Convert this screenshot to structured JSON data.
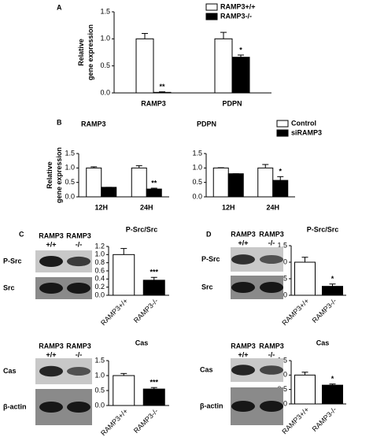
{
  "panel_labels": [
    "A",
    "B",
    "C",
    "D"
  ],
  "chart_data": [
    {
      "type": "bar",
      "ylabel": [
        "Relative",
        "gene expression"
      ],
      "categories": [
        "RAMP3",
        "PDPN"
      ],
      "series": [
        {
          "name": "RAMP3+/+",
          "color": "#ffffff",
          "values": [
            1.0,
            1.0
          ],
          "errors": [
            0.1,
            0.12
          ],
          "significance": [
            null,
            null
          ]
        },
        {
          "name": "RAMP3-/-",
          "color": "#000000",
          "values": [
            0.01,
            0.66
          ],
          "errors": [
            0.01,
            0.04
          ],
          "significance": [
            "**",
            "*"
          ]
        }
      ],
      "ylim": [
        0,
        1.5
      ],
      "yticks": [
        {
          "value": 0,
          "label": "0.0"
        },
        0.5,
        {
          "value": 1,
          "label": "1.0"
        },
        1.5
      ],
      "legend": "upper right"
    },
    {
      "type": "bar",
      "title": "RAMP3",
      "ylabel": [
        "Relative",
        "gene expression"
      ],
      "categories": [
        "12H",
        "24H"
      ],
      "series": [
        {
          "name": "Control",
          "color": "#ffffff",
          "values": [
            1.0,
            1.0
          ],
          "errors": [
            0.04,
            0.08
          ],
          "significance": [
            null,
            null
          ]
        },
        {
          "name": "siRAMP3",
          "color": "#000000",
          "values": [
            0.33,
            0.27
          ],
          "errors": [
            0.0,
            0.03
          ],
          "significance": [
            null,
            "**"
          ]
        }
      ],
      "ylim": [
        0,
        1.5
      ],
      "yticks": [
        {
          "value": 0,
          "label": "0.0"
        },
        0.5,
        {
          "value": 1,
          "label": "1.0"
        },
        1.5
      ]
    },
    {
      "type": "bar",
      "title": "PDPN",
      "categories": [
        "12H",
        "24H"
      ],
      "series": [
        {
          "name": "Control",
          "color": "#ffffff",
          "values": [
            1.0,
            1.0
          ],
          "errors": [
            0.01,
            0.12
          ],
          "significance": [
            null,
            null
          ]
        },
        {
          "name": "siRAMP3",
          "color": "#000000",
          "values": [
            0.8,
            0.57
          ],
          "errors": [
            0.0,
            0.13
          ],
          "significance": [
            null,
            "*"
          ]
        }
      ],
      "ylim": [
        0,
        1.5
      ],
      "yticks": [
        {
          "value": 0,
          "label": "0.0"
        },
        0.5,
        {
          "value": 1,
          "label": "1.0"
        },
        1.5
      ],
      "legend": "upper right"
    },
    {
      "type": "bar",
      "title": "P-Src/Src",
      "categories": [
        "RAMP3+/+",
        "RAMP3-/-"
      ],
      "series": [
        {
          "colors": [
            "#ffffff",
            "#000000"
          ],
          "values": [
            1.0,
            0.37
          ],
          "errors": [
            0.15,
            0.07
          ],
          "significance": [
            null,
            "***"
          ]
        }
      ],
      "ylim": [
        0,
        1.2
      ],
      "yticks": [
        {
          "value": 0,
          "label": "0.0"
        },
        0.2,
        0.4,
        0.6,
        0.8,
        {
          "value": 1,
          "label": "1.0"
        },
        1.2
      ]
    },
    {
      "type": "bar",
      "title": "Cas",
      "categories": [
        "RAMP3+/+",
        "RAMP3-/-"
      ],
      "series": [
        {
          "colors": [
            "#ffffff",
            "#000000"
          ],
          "values": [
            1.0,
            0.55
          ],
          "errors": [
            0.07,
            0.05
          ],
          "significance": [
            null,
            "***"
          ]
        }
      ],
      "ylim": [
        0,
        1.5
      ],
      "yticks": [
        {
          "value": 0,
          "label": "0.0"
        },
        0.5,
        {
          "value": 1,
          "label": "1.0"
        },
        1.5
      ]
    },
    {
      "type": "bar",
      "title": "P-Src/Src",
      "categories": [
        "RAMP3+/+",
        "RAMP3-/-"
      ],
      "series": [
        {
          "colors": [
            "#ffffff",
            "#000000"
          ],
          "values": [
            1.0,
            0.27
          ],
          "errors": [
            0.15,
            0.07
          ],
          "significance": [
            null,
            "*"
          ]
        }
      ],
      "ylim": [
        0,
        1.5
      ],
      "yticks": [
        {
          "value": 0,
          "label": "0.0"
        },
        0.5,
        {
          "value": 1,
          "label": "1.0"
        },
        1.5
      ]
    },
    {
      "type": "bar",
      "title": "Cas",
      "categories": [
        "RAMP3+/+",
        "RAMP3-/-"
      ],
      "series": [
        {
          "colors": [
            "#ffffff",
            "#000000"
          ],
          "values": [
            1.0,
            0.65
          ],
          "errors": [
            0.1,
            0.04
          ],
          "significance": [
            null,
            "*"
          ]
        }
      ],
      "ylim": [
        0,
        1.5
      ],
      "yticks": [
        {
          "value": 0,
          "label": "0.0"
        },
        0.5,
        {
          "value": 1,
          "label": "1.0"
        },
        1.5
      ]
    }
  ],
  "blots": [
    {
      "lanes": [
        {
          "name": "RAMP3",
          "genotype": "+/+"
        },
        {
          "name": "RAMP3",
          "genotype": "-/-"
        }
      ],
      "rows": [
        "P-Src",
        "Src"
      ]
    },
    {
      "lanes": [
        {
          "name": "RAMP3",
          "genotype": "+/+"
        },
        {
          "name": "RAMP3",
          "genotype": "-/-"
        }
      ],
      "rows": [
        "Cas",
        "β-actin"
      ]
    },
    {
      "lanes": [
        {
          "name": "RAMP3",
          "genotype": "+/+"
        },
        {
          "name": "RAMP3",
          "genotype": "-/-"
        }
      ],
      "rows": [
        "P-Src",
        "Src"
      ]
    },
    {
      "lanes": [
        {
          "name": "RAMP3",
          "genotype": "+/+"
        },
        {
          "name": "RAMP3",
          "genotype": "-/-"
        }
      ],
      "rows": [
        "Cas",
        "β-actin"
      ]
    }
  ]
}
